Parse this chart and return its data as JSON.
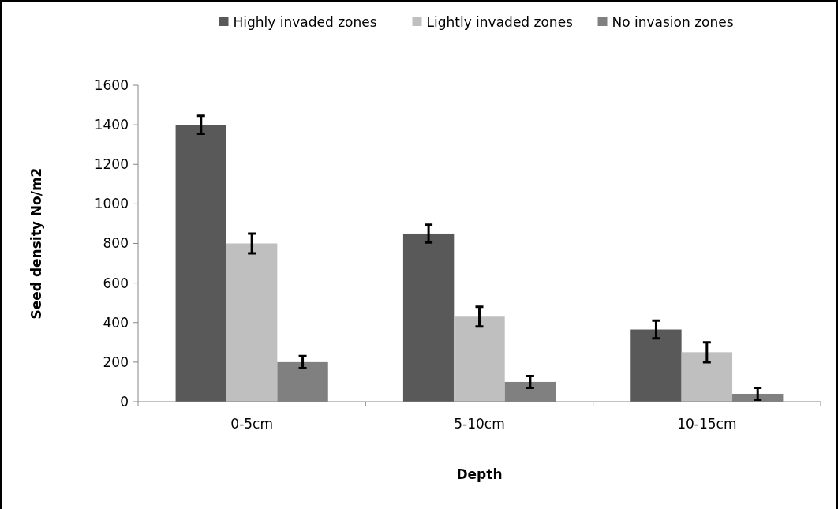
{
  "chart_data": {
    "type": "bar",
    "xlabel": "Depth",
    "ylabel": "Seed density No/m2",
    "categories": [
      "0-5cm",
      "5-10cm",
      "10-15cm"
    ],
    "series": [
      {
        "name": "Highly invaded zones",
        "color": "#595959",
        "values": [
          1400,
          850,
          365
        ],
        "errors": [
          45,
          45,
          45
        ]
      },
      {
        "name": "Lightly invaded zones",
        "color": "#bfbfbf",
        "values": [
          800,
          430,
          250
        ],
        "errors": [
          50,
          50,
          50
        ]
      },
      {
        "name": "No invasion zones",
        "color": "#808080",
        "values": [
          200,
          100,
          40
        ],
        "errors": [
          30,
          30,
          30
        ]
      }
    ],
    "ylim": [
      0,
      1600
    ],
    "yticks": [
      0,
      200,
      400,
      600,
      800,
      1000,
      1200,
      1400,
      1600
    ],
    "grid": false,
    "legend": "top"
  }
}
